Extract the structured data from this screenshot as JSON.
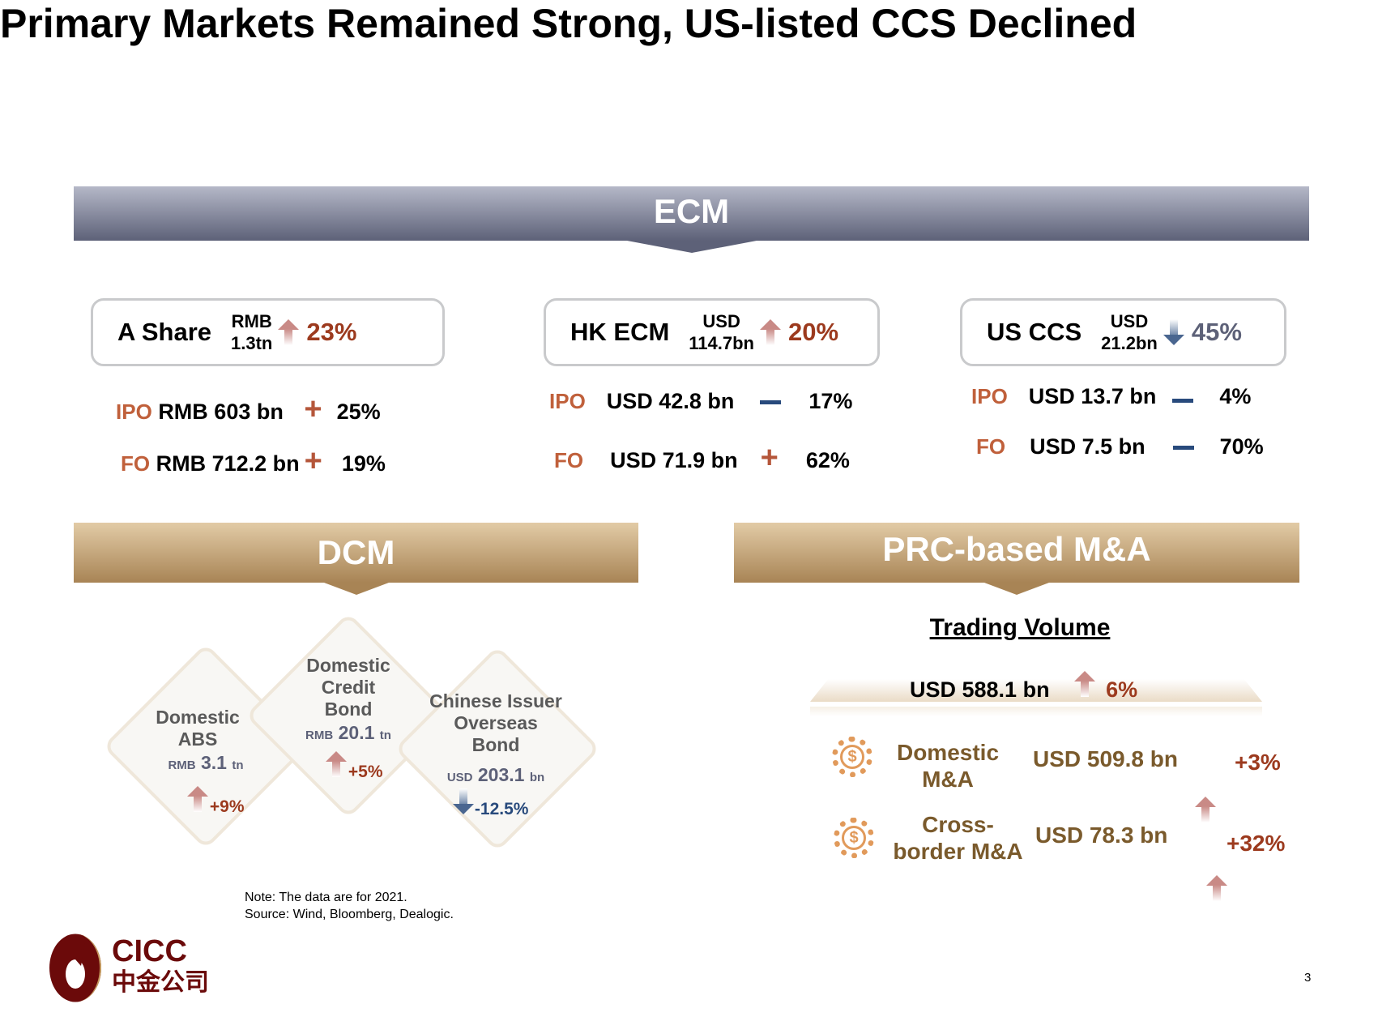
{
  "title": "Primary Markets Remained Strong, US-listed CCS Declined",
  "ecm": {
    "header": "ECM",
    "boxes": [
      {
        "name": "A Share",
        "unit1": "RMB",
        "unit2": "1.3tn",
        "trend": "up",
        "pct": "23%",
        "rows": [
          {
            "label": "IPO",
            "value": "RMB 603 bn",
            "sign": "+",
            "pct": "25%"
          },
          {
            "label": "FO",
            "value": "RMB 712.2 bn",
            "sign": "+",
            "pct": "19%"
          }
        ]
      },
      {
        "name": "HK ECM",
        "unit1": "USD",
        "unit2": "114.7bn",
        "trend": "up",
        "pct": "20%",
        "rows": [
          {
            "label": "IPO",
            "value": "USD 42.8 bn",
            "sign": "-",
            "pct": "17%"
          },
          {
            "label": "FO",
            "value": "USD 71.9 bn",
            "sign": "+",
            "pct": "62%"
          }
        ]
      },
      {
        "name": "US CCS",
        "unit1": "USD",
        "unit2": "21.2bn",
        "trend": "down",
        "pct": "45%",
        "rows": [
          {
            "label": "IPO",
            "value": "USD 13.7 bn",
            "sign": "-",
            "pct": "4%"
          },
          {
            "label": "FO",
            "value": "USD 7.5 bn",
            "sign": "-",
            "pct": "70%"
          }
        ]
      }
    ]
  },
  "dcm": {
    "header": "DCM",
    "items": [
      {
        "l1": "Domestic",
        "l2": "ABS",
        "l3": "",
        "cur": "RMB",
        "num": "3.1",
        "unit": "tn",
        "trend": "up",
        "pct": "+9%"
      },
      {
        "l1": "Domestic",
        "l2": "Credit",
        "l3": "Bond",
        "cur": "RMB",
        "num": "20.1",
        "unit": "tn",
        "trend": "up",
        "pct": "+5%"
      },
      {
        "l1": "Chinese Issuer",
        "l2": "Overseas",
        "l3": "Bond",
        "cur": "USD",
        "num": "203.1",
        "unit": "bn",
        "trend": "down",
        "pct": "-12.5%"
      }
    ]
  },
  "ma": {
    "header": "PRC-based M&A",
    "subtitle": "Trading Volume",
    "total": "USD 588.1 bn",
    "total_pct": "6%",
    "items": [
      {
        "l1": "Domestic",
        "l2": "M&A",
        "value": "USD 509.8 bn",
        "pct": "+3%",
        "icon": "dollar-gear-icon"
      },
      {
        "l1": "Cross-",
        "l2": "border M&A",
        "value": "USD 78.3 bn",
        "pct": "+32%",
        "icon": "dollar-gear-icon"
      }
    ]
  },
  "note": "Note: The data are for 2021.",
  "source": "Source: Wind, Bloomberg, Dealogic.",
  "logo": {
    "en": "CICC",
    "cn": "中金公司"
  },
  "page": "3",
  "colors": {
    "ecm": "#5d6178",
    "gold": "#a88455",
    "up": "#9c3a1e",
    "down": "#284a7c",
    "label": "#c0603b"
  }
}
